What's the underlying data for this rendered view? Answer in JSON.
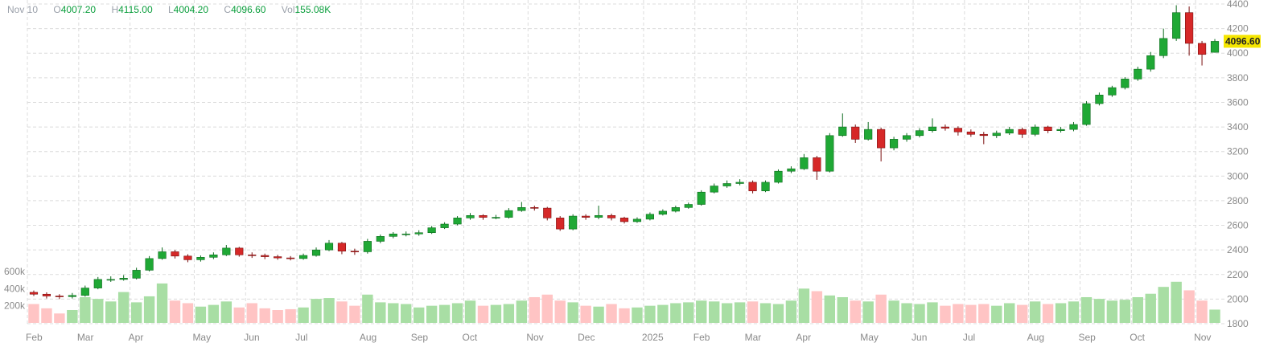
{
  "legend": {
    "date": "Nov 10",
    "open_label": "O",
    "open": "4007.20",
    "high_label": "H",
    "high": "4115.00",
    "low_label": "L",
    "low": "4004.20",
    "close_label": "C",
    "close": "4096.60",
    "vol_label": "Vol",
    "vol": "155.08K"
  },
  "chart_data": {
    "type": "candlestick",
    "title": "",
    "price_axis": {
      "position": "right",
      "range": [
        1800,
        4400
      ],
      "ticks": [
        1800,
        2000,
        2200,
        2400,
        2600,
        2800,
        3000,
        3200,
        3400,
        3600,
        3800,
        4000,
        4200,
        4400
      ]
    },
    "volume_axis": {
      "position": "left",
      "ticks": [
        {
          "value": 200,
          "label": "200k"
        },
        {
          "value": 400,
          "label": "400k"
        },
        {
          "value": 600,
          "label": "600k"
        }
      ]
    },
    "grid": true,
    "last_price_label": "4096.60",
    "colors": {
      "up": "#1fa835",
      "down": "#d62828",
      "up_volume": "#a8dea4",
      "down_volume": "#ffc4c4",
      "last_price_bg": "#f5e600"
    },
    "x_ticks": [
      {
        "date": "2024-02-05",
        "label": "Feb"
      },
      {
        "date": "2024-03-04",
        "label": "Mar"
      },
      {
        "date": "2024-04-01",
        "label": "Apr"
      },
      {
        "date": "2024-05-06",
        "label": "May"
      },
      {
        "date": "2024-06-03",
        "label": "Jun"
      },
      {
        "date": "2024-07-01",
        "label": "Jul"
      },
      {
        "date": "2024-08-05",
        "label": "Aug"
      },
      {
        "date": "2024-09-02",
        "label": "Sep"
      },
      {
        "date": "2024-09-30",
        "label": "Oct"
      },
      {
        "date": "2024-11-04",
        "label": "Nov"
      },
      {
        "date": "2024-12-02",
        "label": "Dec"
      },
      {
        "date": "2025-01-06",
        "label": "2025"
      },
      {
        "date": "2025-02-03",
        "label": "Feb"
      },
      {
        "date": "2025-03-03",
        "label": "Mar"
      },
      {
        "date": "2025-03-31",
        "label": "Apr"
      },
      {
        "date": "2025-05-05",
        "label": "May"
      },
      {
        "date": "2025-06-02",
        "label": "Jun"
      },
      {
        "date": "2025-06-30",
        "label": "Jul"
      },
      {
        "date": "2025-08-04",
        "label": "Aug"
      },
      {
        "date": "2025-09-01",
        "label": "Sep"
      },
      {
        "date": "2025-09-29",
        "label": "Oct"
      },
      {
        "date": "2025-11-03",
        "label": "Nov"
      }
    ],
    "columns": [
      "date",
      "open",
      "high",
      "low",
      "close",
      "volume_k"
    ],
    "candles": [
      [
        "2024-02-05",
        2055,
        2070,
        2025,
        2040,
        220
      ],
      [
        "2024-02-12",
        2040,
        2055,
        2005,
        2025,
        170
      ],
      [
        "2024-02-19",
        2025,
        2040,
        2000,
        2020,
        110
      ],
      [
        "2024-02-26",
        2020,
        2050,
        2005,
        2030,
        150
      ],
      [
        "2024-03-04",
        2030,
        2110,
        2020,
        2090,
        300
      ],
      [
        "2024-03-11",
        2090,
        2180,
        2080,
        2160,
        280
      ],
      [
        "2024-03-18",
        2160,
        2185,
        2140,
        2160,
        250
      ],
      [
        "2024-03-25",
        2160,
        2195,
        2150,
        2170,
        360
      ],
      [
        "2024-04-01",
        2170,
        2255,
        2160,
        2235,
        240
      ],
      [
        "2024-04-08",
        2235,
        2350,
        2225,
        2330,
        310
      ],
      [
        "2024-04-15",
        2330,
        2420,
        2320,
        2385,
        460
      ],
      [
        "2024-04-22",
        2385,
        2400,
        2330,
        2350,
        260
      ],
      [
        "2024-04-29",
        2350,
        2365,
        2300,
        2320,
        230
      ],
      [
        "2024-05-06",
        2320,
        2355,
        2305,
        2340,
        190
      ],
      [
        "2024-05-13",
        2340,
        2380,
        2325,
        2360,
        210
      ],
      [
        "2024-05-20",
        2360,
        2440,
        2350,
        2415,
        250
      ],
      [
        "2024-05-27",
        2415,
        2425,
        2345,
        2360,
        180
      ],
      [
        "2024-06-03",
        2360,
        2380,
        2335,
        2355,
        230
      ],
      [
        "2024-06-10",
        2355,
        2370,
        2325,
        2345,
        170
      ],
      [
        "2024-06-17",
        2345,
        2360,
        2320,
        2335,
        150
      ],
      [
        "2024-06-24",
        2335,
        2350,
        2315,
        2330,
        160
      ],
      [
        "2024-07-01",
        2330,
        2370,
        2320,
        2355,
        180
      ],
      [
        "2024-07-08",
        2355,
        2420,
        2345,
        2400,
        280
      ],
      [
        "2024-07-15",
        2400,
        2480,
        2390,
        2455,
        290
      ],
      [
        "2024-07-22",
        2455,
        2465,
        2365,
        2390,
        250
      ],
      [
        "2024-07-29",
        2390,
        2410,
        2360,
        2385,
        200
      ],
      [
        "2024-08-05",
        2385,
        2490,
        2370,
        2470,
        330
      ],
      [
        "2024-08-12",
        2470,
        2525,
        2455,
        2510,
        240
      ],
      [
        "2024-08-19",
        2510,
        2545,
        2495,
        2530,
        230
      ],
      [
        "2024-08-26",
        2530,
        2550,
        2510,
        2530,
        220
      ],
      [
        "2024-09-02",
        2530,
        2560,
        2515,
        2540,
        180
      ],
      [
        "2024-09-09",
        2540,
        2595,
        2530,
        2580,
        200
      ],
      [
        "2024-09-16",
        2580,
        2625,
        2570,
        2610,
        210
      ],
      [
        "2024-09-23",
        2610,
        2675,
        2600,
        2660,
        230
      ],
      [
        "2024-09-30",
        2660,
        2700,
        2645,
        2680,
        260
      ],
      [
        "2024-10-07",
        2680,
        2690,
        2645,
        2665,
        200
      ],
      [
        "2024-10-14",
        2665,
        2685,
        2650,
        2665,
        210
      ],
      [
        "2024-10-21",
        2665,
        2740,
        2655,
        2720,
        220
      ],
      [
        "2024-10-28",
        2720,
        2790,
        2710,
        2745,
        260
      ],
      [
        "2024-11-04",
        2745,
        2760,
        2720,
        2740,
        300
      ],
      [
        "2024-11-11",
        2740,
        2750,
        2640,
        2660,
        330
      ],
      [
        "2024-11-18",
        2660,
        2675,
        2555,
        2570,
        260
      ],
      [
        "2024-11-25",
        2570,
        2690,
        2560,
        2675,
        240
      ],
      [
        "2024-12-02",
        2675,
        2690,
        2645,
        2665,
        200
      ],
      [
        "2024-12-09",
        2665,
        2760,
        2650,
        2680,
        190
      ],
      [
        "2024-12-16",
        2680,
        2695,
        2640,
        2660,
        220
      ],
      [
        "2024-12-23",
        2660,
        2670,
        2615,
        2630,
        170
      ],
      [
        "2024-12-30",
        2630,
        2665,
        2620,
        2650,
        180
      ],
      [
        "2025-01-06",
        2650,
        2705,
        2640,
        2690,
        200
      ],
      [
        "2025-01-13",
        2690,
        2730,
        2680,
        2715,
        210
      ],
      [
        "2025-01-20",
        2715,
        2760,
        2705,
        2745,
        230
      ],
      [
        "2025-01-27",
        2745,
        2785,
        2735,
        2770,
        240
      ],
      [
        "2025-02-03",
        2770,
        2885,
        2760,
        2870,
        260
      ],
      [
        "2025-02-10",
        2870,
        2940,
        2860,
        2920,
        250
      ],
      [
        "2025-02-17",
        2920,
        2965,
        2905,
        2940,
        230
      ],
      [
        "2025-02-24",
        2940,
        2975,
        2925,
        2950,
        240
      ],
      [
        "2025-03-03",
        2950,
        2965,
        2860,
        2880,
        250
      ],
      [
        "2025-03-10",
        2880,
        2965,
        2870,
        2950,
        230
      ],
      [
        "2025-03-17",
        2950,
        3055,
        2940,
        3040,
        220
      ],
      [
        "2025-03-24",
        3040,
        3080,
        3025,
        3060,
        260
      ],
      [
        "2025-03-31",
        3060,
        3180,
        3050,
        3150,
        400
      ],
      [
        "2025-04-07",
        3150,
        3165,
        2970,
        3040,
        370
      ],
      [
        "2025-04-14",
        3040,
        3350,
        3030,
        3330,
        320
      ],
      [
        "2025-04-21",
        3330,
        3510,
        3320,
        3400,
        300
      ],
      [
        "2025-04-28",
        3400,
        3420,
        3270,
        3300,
        260
      ],
      [
        "2025-05-05",
        3300,
        3440,
        3290,
        3380,
        250
      ],
      [
        "2025-05-12",
        3380,
        3395,
        3120,
        3230,
        330
      ],
      [
        "2025-05-19",
        3230,
        3320,
        3210,
        3300,
        260
      ],
      [
        "2025-05-26",
        3300,
        3350,
        3280,
        3330,
        230
      ],
      [
        "2025-06-02",
        3330,
        3390,
        3315,
        3370,
        220
      ],
      [
        "2025-06-09",
        3370,
        3470,
        3355,
        3400,
        240
      ],
      [
        "2025-06-16",
        3400,
        3420,
        3370,
        3390,
        200
      ],
      [
        "2025-06-23",
        3390,
        3405,
        3330,
        3360,
        220
      ],
      [
        "2025-06-30",
        3360,
        3380,
        3320,
        3340,
        210
      ],
      [
        "2025-07-07",
        3340,
        3360,
        3260,
        3330,
        220
      ],
      [
        "2025-07-14",
        3330,
        3370,
        3310,
        3350,
        200
      ],
      [
        "2025-07-21",
        3350,
        3400,
        3335,
        3380,
        230
      ],
      [
        "2025-07-28",
        3380,
        3395,
        3310,
        3340,
        210
      ],
      [
        "2025-08-04",
        3340,
        3420,
        3325,
        3400,
        250
      ],
      [
        "2025-08-11",
        3400,
        3410,
        3350,
        3370,
        220
      ],
      [
        "2025-08-18",
        3370,
        3400,
        3355,
        3380,
        230
      ],
      [
        "2025-08-25",
        3380,
        3440,
        3365,
        3420,
        250
      ],
      [
        "2025-09-01",
        3420,
        3610,
        3410,
        3590,
        300
      ],
      [
        "2025-09-08",
        3590,
        3680,
        3575,
        3660,
        280
      ],
      [
        "2025-09-15",
        3660,
        3735,
        3645,
        3720,
        260
      ],
      [
        "2025-09-22",
        3720,
        3805,
        3705,
        3790,
        270
      ],
      [
        "2025-09-29",
        3790,
        3890,
        3775,
        3870,
        300
      ],
      [
        "2025-10-06",
        3870,
        4010,
        3850,
        3980,
        340
      ],
      [
        "2025-10-13",
        3980,
        4200,
        3960,
        4120,
        420
      ],
      [
        "2025-10-20",
        4120,
        4390,
        4100,
        4330,
        480
      ],
      [
        "2025-10-27",
        4330,
        4380,
        3980,
        4080,
        380
      ],
      [
        "2025-11-03",
        4080,
        4100,
        3900,
        3990,
        260
      ],
      [
        "2025-11-10",
        4007.2,
        4115,
        4004.2,
        4096.6,
        155.08
      ]
    ]
  }
}
